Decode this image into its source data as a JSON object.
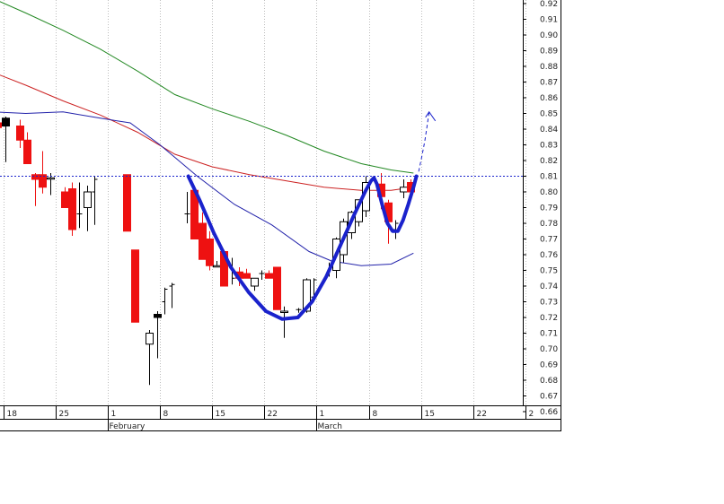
{
  "chart_data": {
    "type": "candlestick",
    "title": "",
    "xlabel": "",
    "ylabel": "",
    "ylim": [
      0.655,
      0.925
    ],
    "grid": true,
    "y_ticks": [
      "0.92",
      "0.91",
      "0.90",
      "0.89",
      "0.88",
      "0.87",
      "0.86",
      "0.85",
      "0.84",
      "0.83",
      "0.82",
      "0.81",
      "0.80",
      "0.79",
      "0.78",
      "0.77",
      "0.76",
      "0.75",
      "0.74",
      "0.73",
      "0.72",
      "0.71",
      "0.70",
      "0.69",
      "0.68",
      "0.67",
      "0.66"
    ],
    "x_ticks": [
      {
        "label": "18",
        "day": -14
      },
      {
        "label": "25",
        "day": -7
      },
      {
        "label": "1",
        "day": 0
      },
      {
        "label": "8",
        "day": 7
      },
      {
        "label": "15",
        "day": 14
      },
      {
        "label": "22",
        "day": 21
      },
      {
        "label": "1",
        "day": 28
      },
      {
        "label": "8",
        "day": 35
      },
      {
        "label": "15",
        "day": 42
      },
      {
        "label": "22",
        "day": 49
      },
      {
        "label": "2",
        "day": 56
      }
    ],
    "month_labels": [
      {
        "label": "February",
        "day": 0
      },
      {
        "label": "March",
        "day": 28
      }
    ],
    "reference_level": 0.81,
    "colors": {
      "down": "#ee1111",
      "up": "#ffffff",
      "bar": "#000000",
      "ma_long": "#228822",
      "ma_mid": "#cc2222",
      "ma_short": "#2222aa",
      "pattern": "#1a22cc",
      "reference": "#1a22cc",
      "grid": "#bdbdbd"
    },
    "candles": [
      {
        "day": -14.8,
        "o": 0.844,
        "h": 0.857,
        "l": 0.818,
        "c": 0.841
      },
      {
        "day": -13.7,
        "o": 0.842,
        "h": 0.848,
        "l": 0.819,
        "c": 0.847,
        "style": "black"
      },
      {
        "day": -11.8,
        "o": 0.842,
        "h": 0.846,
        "l": 0.828,
        "c": 0.833
      },
      {
        "day": -10.8,
        "o": 0.833,
        "h": 0.838,
        "l": 0.818,
        "c": 0.818
      },
      {
        "day": -9.8,
        "o": 0.811,
        "h": 0.812,
        "l": 0.791,
        "c": 0.808
      },
      {
        "day": -8.8,
        "o": 0.811,
        "h": 0.826,
        "l": 0.799,
        "c": 0.803
      },
      {
        "day": -7.7,
        "o": 0.809,
        "h": 0.812,
        "l": 0.798,
        "c": 0.809
      },
      {
        "day": -5.8,
        "o": 0.8,
        "h": 0.803,
        "l": 0.79,
        "c": 0.79
      },
      {
        "day": -4.8,
        "o": 0.802,
        "h": 0.806,
        "l": 0.772,
        "c": 0.776
      },
      {
        "day": -3.8,
        "o": 0.786,
        "h": 0.806,
        "l": 0.777,
        "c": 0.786,
        "style": "bar"
      },
      {
        "day": -2.8,
        "o": 0.79,
        "h": 0.804,
        "l": 0.775,
        "c": 0.8
      },
      {
        "day": -1.8,
        "o": 0.8,
        "h": 0.81,
        "l": 0.779,
        "c": 0.808,
        "style": "bar"
      },
      {
        "day": 2.5,
        "o": 0.811,
        "h": 0.811,
        "l": 0.775,
        "c": 0.775
      },
      {
        "day": 3.6,
        "o": 0.763,
        "h": 0.763,
        "l": 0.717,
        "c": 0.717
      },
      {
        "day": 5.6,
        "o": 0.703,
        "h": 0.712,
        "l": 0.677,
        "c": 0.71
      },
      {
        "day": 6.6,
        "o": 0.72,
        "h": 0.724,
        "l": 0.694,
        "c": 0.722,
        "style": "black"
      },
      {
        "day": 7.6,
        "o": 0.73,
        "h": 0.739,
        "l": 0.722,
        "c": 0.738,
        "style": "bar"
      },
      {
        "day": 8.6,
        "o": 0.74,
        "h": 0.742,
        "l": 0.726,
        "c": 0.741,
        "style": "bar"
      },
      {
        "day": 10.6,
        "o": 0.786,
        "h": 0.8,
        "l": 0.78,
        "c": 0.786,
        "style": "bar"
      },
      {
        "day": 11.6,
        "o": 0.801,
        "h": 0.801,
        "l": 0.77,
        "c": 0.77
      },
      {
        "day": 12.6,
        "o": 0.78,
        "h": 0.787,
        "l": 0.757,
        "c": 0.757
      },
      {
        "day": 13.6,
        "o": 0.77,
        "h": 0.775,
        "l": 0.75,
        "c": 0.753
      },
      {
        "day": 14.6,
        "o": 0.753,
        "h": 0.756,
        "l": 0.752,
        "c": 0.753
      },
      {
        "day": 15.6,
        "o": 0.762,
        "h": 0.763,
        "l": 0.74,
        "c": 0.74
      },
      {
        "day": 16.6,
        "o": 0.752,
        "h": 0.758,
        "l": 0.741,
        "c": 0.745,
        "style": "bar"
      },
      {
        "day": 17.6,
        "o": 0.749,
        "h": 0.752,
        "l": 0.74,
        "c": 0.745
      },
      {
        "day": 18.6,
        "o": 0.748,
        "h": 0.751,
        "l": 0.745,
        "c": 0.745
      },
      {
        "day": 19.6,
        "o": 0.74,
        "h": 0.745,
        "l": 0.737,
        "c": 0.745
      },
      {
        "day": 20.6,
        "o": 0.748,
        "h": 0.75,
        "l": 0.744,
        "c": 0.748,
        "style": "bar"
      },
      {
        "day": 21.6,
        "o": 0.748,
        "h": 0.75,
        "l": 0.745,
        "c": 0.745
      },
      {
        "day": 22.6,
        "o": 0.752,
        "h": 0.752,
        "l": 0.725,
        "c": 0.725
      },
      {
        "day": 23.6,
        "o": 0.724,
        "h": 0.727,
        "l": 0.707,
        "c": 0.724
      },
      {
        "day": 25.6,
        "o": 0.725,
        "h": 0.726,
        "l": 0.723,
        "c": 0.725,
        "style": "bar"
      },
      {
        "day": 26.6,
        "o": 0.724,
        "h": 0.745,
        "l": 0.723,
        "c": 0.744
      },
      {
        "day": 27.6,
        "o": 0.733,
        "h": 0.745,
        "l": 0.73,
        "c": 0.744,
        "style": "bar"
      },
      {
        "day": 29.6,
        "o": 0.748,
        "h": 0.755,
        "l": 0.746,
        "c": 0.752,
        "style": "bar"
      },
      {
        "day": 30.6,
        "o": 0.75,
        "h": 0.771,
        "l": 0.745,
        "c": 0.77
      },
      {
        "day": 31.6,
        "o": 0.76,
        "h": 0.783,
        "l": 0.755,
        "c": 0.781
      },
      {
        "day": 32.6,
        "o": 0.774,
        "h": 0.788,
        "l": 0.77,
        "c": 0.787
      },
      {
        "day": 33.6,
        "o": 0.781,
        "h": 0.795,
        "l": 0.778,
        "c": 0.795
      },
      {
        "day": 34.6,
        "o": 0.788,
        "h": 0.81,
        "l": 0.784,
        "c": 0.806
      },
      {
        "day": 36.6,
        "o": 0.805,
        "h": 0.812,
        "l": 0.789,
        "c": 0.797
      },
      {
        "day": 37.6,
        "o": 0.793,
        "h": 0.795,
        "l": 0.767,
        "c": 0.781
      },
      {
        "day": 38.6,
        "o": 0.776,
        "h": 0.782,
        "l": 0.77,
        "c": 0.78,
        "style": "bar"
      },
      {
        "day": 39.6,
        "o": 0.8,
        "h": 0.808,
        "l": 0.796,
        "c": 0.803
      },
      {
        "day": 40.6,
        "o": 0.806,
        "h": 0.808,
        "l": 0.8,
        "c": 0.8
      }
    ],
    "series": [
      {
        "kind": "ma_long",
        "points": [
          [
            -15.3,
            0.923
          ],
          [
            -11,
            0.914
          ],
          [
            -6,
            0.903
          ],
          [
            -1,
            0.891
          ],
          [
            4,
            0.877
          ],
          [
            9,
            0.862
          ],
          [
            14,
            0.853
          ],
          [
            19,
            0.845
          ],
          [
            24,
            0.836
          ],
          [
            29,
            0.826
          ],
          [
            34,
            0.818
          ],
          [
            38,
            0.814
          ],
          [
            41,
            0.812
          ]
        ]
      },
      {
        "kind": "ma_mid",
        "points": [
          [
            -15.3,
            0.876
          ],
          [
            -11,
            0.868
          ],
          [
            -6,
            0.858
          ],
          [
            -1,
            0.849
          ],
          [
            4,
            0.838
          ],
          [
            9,
            0.824
          ],
          [
            14,
            0.816
          ],
          [
            19,
            0.811
          ],
          [
            24,
            0.807
          ],
          [
            29,
            0.803
          ],
          [
            34,
            0.801
          ],
          [
            38,
            0.801
          ],
          [
            41,
            0.803
          ]
        ]
      },
      {
        "kind": "ma_short",
        "points": [
          [
            -15.3,
            0.851
          ],
          [
            -11,
            0.85
          ],
          [
            -6,
            0.851
          ],
          [
            -1,
            0.847
          ],
          [
            3,
            0.844
          ],
          [
            7,
            0.83
          ],
          [
            12,
            0.81
          ],
          [
            17,
            0.792
          ],
          [
            22,
            0.779
          ],
          [
            27,
            0.762
          ],
          [
            30,
            0.756
          ],
          [
            34,
            0.753
          ],
          [
            38,
            0.754
          ],
          [
            41,
            0.761
          ]
        ]
      },
      {
        "kind": "pattern",
        "points": [
          [
            10.8,
            0.81
          ],
          [
            12.3,
            0.795
          ],
          [
            14.2,
            0.774
          ],
          [
            16.5,
            0.752
          ],
          [
            18.9,
            0.736
          ],
          [
            21.2,
            0.724
          ],
          [
            23.4,
            0.719
          ],
          [
            25.5,
            0.72
          ],
          [
            27.4,
            0.73
          ],
          [
            29.3,
            0.746
          ],
          [
            31.2,
            0.766
          ],
          [
            33.0,
            0.785
          ],
          [
            34.6,
            0.801
          ],
          [
            35.3,
            0.807
          ],
          [
            35.7,
            0.809
          ],
          [
            36.1,
            0.805
          ],
          [
            36.8,
            0.792
          ],
          [
            37.5,
            0.78
          ],
          [
            38.2,
            0.775
          ],
          [
            38.9,
            0.775
          ],
          [
            39.6,
            0.782
          ],
          [
            40.3,
            0.792
          ],
          [
            41.0,
            0.803
          ],
          [
            41.4,
            0.81
          ]
        ]
      },
      {
        "kind": "projection",
        "points": [
          [
            41.7,
            0.813
          ],
          [
            42.1,
            0.822
          ],
          [
            42.5,
            0.832
          ],
          [
            42.8,
            0.841
          ],
          [
            43.1,
            0.851
          ]
        ]
      }
    ]
  }
}
